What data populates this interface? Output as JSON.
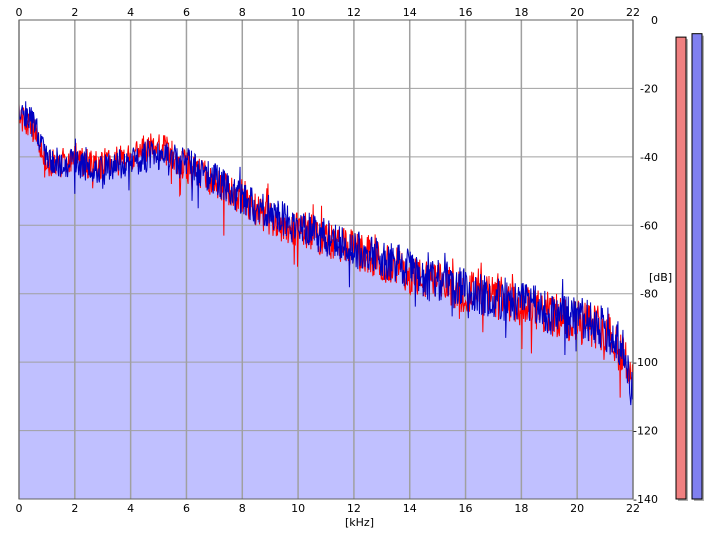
{
  "chart_data": {
    "type": "area",
    "title": "",
    "xlabel": "[kHz]",
    "ylabel": "[dB]",
    "xlim": [
      0,
      22
    ],
    "ylim": [
      -140,
      0
    ],
    "x_ticks": [
      "0",
      "2",
      "4",
      "6",
      "8",
      "10",
      "12",
      "14",
      "16",
      "18",
      "20",
      "22"
    ],
    "y_ticks": [
      "0",
      "-20",
      "-40",
      "-60",
      "-80",
      "-100",
      "-120",
      "-140"
    ],
    "grid": true,
    "x_ticks_top_and_bottom": true,
    "y_ticks_position": "right",
    "colors": {
      "fill": "#c0c0ff",
      "grid": "#a0a0a0",
      "plot_background": "#ffffff",
      "series_left": "#ff0000",
      "series_right": "#0000c0",
      "meter_left": "#f08080",
      "meter_right": "#8080f0"
    },
    "series": [
      {
        "color": "#ff0000",
        "x": [
          0,
          0.5,
          1,
          1.5,
          2,
          2.5,
          3,
          3.5,
          4,
          4.5,
          5,
          5.5,
          6,
          6.5,
          7,
          7.5,
          8,
          8.5,
          9,
          9.5,
          10,
          10.5,
          11,
          11.5,
          12,
          12.5,
          13,
          13.5,
          14,
          14.5,
          15,
          15.5,
          16,
          16.5,
          17,
          17.5,
          18,
          18.5,
          19,
          19.5,
          20,
          20.5,
          21,
          21.5,
          22
        ],
        "values": [
          -28,
          -32,
          -42,
          -42,
          -41,
          -42,
          -42,
          -41,
          -41,
          -38,
          -37,
          -40,
          -43,
          -45,
          -47,
          -50,
          -52,
          -56,
          -58,
          -60,
          -61,
          -62,
          -64,
          -66,
          -67,
          -69,
          -71,
          -72,
          -74,
          -76,
          -77,
          -78,
          -79,
          -80,
          -81,
          -83,
          -84,
          -85,
          -86,
          -87,
          -88,
          -89,
          -90,
          -95,
          -104
        ]
      },
      {
        "color": "#0000c0",
        "x": [
          0,
          0.5,
          1,
          1.5,
          2,
          2.5,
          3,
          3.5,
          4,
          4.5,
          5,
          5.5,
          6,
          6.5,
          7,
          7.5,
          8,
          8.5,
          9,
          9.5,
          10,
          10.5,
          11,
          11.5,
          12,
          12.5,
          13,
          13.5,
          14,
          14.5,
          15,
          15.5,
          16,
          16.5,
          17,
          17.5,
          18,
          18.5,
          19,
          19.5,
          20,
          20.5,
          21,
          21.5,
          22
        ],
        "values": [
          -25,
          -30,
          -40,
          -42,
          -42,
          -43,
          -44,
          -42,
          -42,
          -40,
          -40,
          -41,
          -42,
          -44,
          -46,
          -49,
          -52,
          -55,
          -56,
          -58,
          -60,
          -62,
          -63,
          -65,
          -67,
          -68,
          -70,
          -71,
          -73,
          -75,
          -76,
          -77,
          -78,
          -80,
          -81,
          -82,
          -83,
          -84,
          -86,
          -87,
          -88,
          -88,
          -90,
          -94,
          -110
        ]
      }
    ],
    "level_meters": [
      {
        "color": "#f08080",
        "value_db": -5
      },
      {
        "color": "#8080f0",
        "value_db": -4
      }
    ]
  }
}
